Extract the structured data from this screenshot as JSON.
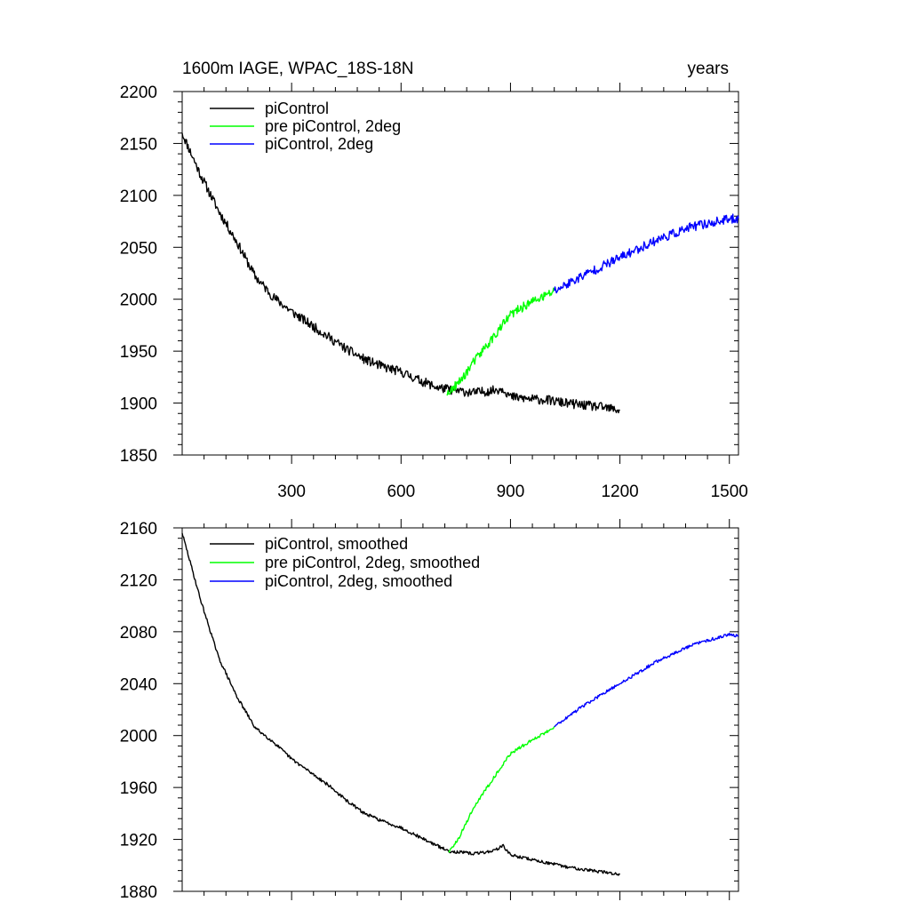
{
  "title_left": "1600m IAGE, WPAC_18S-18N",
  "title_right": "years",
  "chart_data": [
    {
      "type": "line",
      "panel": "top",
      "xlim": [
        0,
        1525
      ],
      "ylim": [
        1850,
        2200
      ],
      "xticks": [
        300,
        600,
        900,
        1200,
        1500
      ],
      "xtick_labels": [
        "300",
        "600",
        "900",
        "1200",
        "1500"
      ],
      "yticks": [
        1850,
        1900,
        1950,
        2000,
        2050,
        2100,
        2150,
        2200
      ],
      "ytick_labels": [
        "1850",
        "1900",
        "1950",
        "2000",
        "2050",
        "2100",
        "2150",
        "2200"
      ],
      "legend": "top-left",
      "noise": 4.5,
      "series": [
        {
          "name": "piControl",
          "color": "#000000",
          "x": [
            0,
            50,
            100,
            150,
            200,
            250,
            300,
            350,
            400,
            450,
            500,
            550,
            600,
            650,
            700,
            750,
            800,
            850,
            880,
            900,
            950,
            1000,
            1050,
            1100,
            1150,
            1200
          ],
          "y": [
            2160,
            2120,
            2085,
            2055,
            2022,
            2002,
            1988,
            1976,
            1964,
            1952,
            1942,
            1935,
            1930,
            1922,
            1915,
            1912,
            1910,
            1912,
            1914,
            1906,
            1904,
            1903,
            1900,
            1898,
            1896,
            1893
          ]
        },
        {
          "name": "pre piControl, 2deg",
          "color": "#00ff00",
          "x": [
            725,
            760,
            800,
            850,
            900,
            950,
            1000,
            1020
          ],
          "y": [
            1908,
            1920,
            1940,
            1962,
            1985,
            1996,
            2004,
            2008
          ]
        },
        {
          "name": "piControl, 2deg",
          "color": "#0000ff",
          "x": [
            1020,
            1100,
            1200,
            1300,
            1400,
            1500,
            1525
          ],
          "y": [
            2008,
            2023,
            2040,
            2057,
            2070,
            2077,
            2078
          ]
        }
      ]
    },
    {
      "type": "line",
      "panel": "bottom",
      "xlim": [
        0,
        1525
      ],
      "ylim": [
        1880,
        2160
      ],
      "xticks": [
        300,
        600,
        900,
        1200,
        1500
      ],
      "yticks": [
        1880,
        1920,
        1960,
        2000,
        2040,
        2080,
        2120,
        2160
      ],
      "ytick_labels": [
        "1880",
        "1920",
        "1960",
        "2000",
        "2040",
        "2080",
        "2120",
        "2160"
      ],
      "legend": "top-left",
      "noise": 1.2,
      "series": [
        {
          "name": "piControl, smoothed",
          "color": "#000000",
          "x": [
            0,
            50,
            100,
            150,
            200,
            250,
            300,
            350,
            400,
            450,
            500,
            550,
            600,
            650,
            700,
            730,
            800,
            850,
            880,
            900,
            950,
            1000,
            1050,
            1100,
            1150,
            1200
          ],
          "y": [
            2156,
            2105,
            2060,
            2030,
            2006,
            1995,
            1982,
            1972,
            1962,
            1950,
            1940,
            1934,
            1929,
            1922,
            1915,
            1911,
            1909,
            1911,
            1915,
            1908,
            1905,
            1902,
            1899,
            1897,
            1895,
            1893
          ]
        },
        {
          "name": "pre piControl, 2deg, smoothed",
          "color": "#00ff00",
          "x": [
            730,
            760,
            800,
            850,
            900,
            950,
            1000,
            1020
          ],
          "y": [
            1910,
            1922,
            1945,
            1966,
            1986,
            1995,
            2003,
            2007
          ]
        },
        {
          "name": "piControl, 2deg, smoothed",
          "color": "#0000ff",
          "x": [
            1020,
            1100,
            1200,
            1300,
            1400,
            1500,
            1525
          ],
          "y": [
            2007,
            2023,
            2040,
            2057,
            2070,
            2078,
            2077
          ]
        }
      ]
    }
  ]
}
